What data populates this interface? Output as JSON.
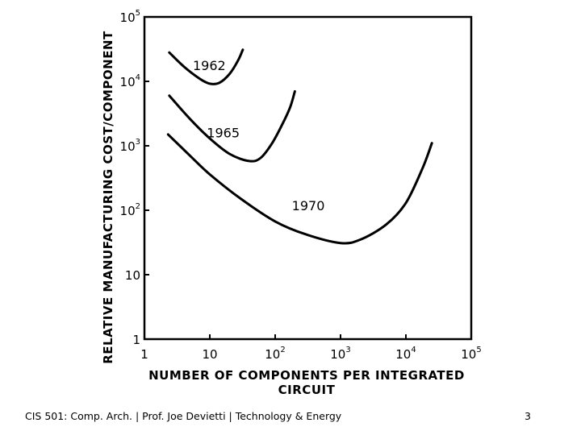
{
  "chart_data": {
    "type": "line",
    "title": "",
    "xlabel_lines": [
      "NUMBER OF COMPONENTS PER INTEGRATED",
      "CIRCUIT"
    ],
    "ylabel": "RELATIVE MANUFACTURING COST/COMPONENT",
    "xscale": "log",
    "yscale": "log",
    "xlim": [
      1,
      100000
    ],
    "ylim": [
      1,
      100000
    ],
    "grid": false,
    "x_ticks": [
      {
        "value": 1,
        "base": "1",
        "sup": ""
      },
      {
        "value": 10,
        "base": "10",
        "sup": ""
      },
      {
        "value": 100,
        "base": "10",
        "sup": "2"
      },
      {
        "value": 1000,
        "base": "10",
        "sup": "3"
      },
      {
        "value": 10000,
        "base": "10",
        "sup": "4"
      },
      {
        "value": 100000,
        "base": "10",
        "sup": "5"
      }
    ],
    "y_ticks": [
      {
        "value": 1,
        "base": "1",
        "sup": ""
      },
      {
        "value": 10,
        "base": "10",
        "sup": ""
      },
      {
        "value": 100,
        "base": "10",
        "sup": "2"
      },
      {
        "value": 1000,
        "base": "10",
        "sup": "3"
      },
      {
        "value": 10000,
        "base": "10",
        "sup": "4"
      },
      {
        "value": 100000,
        "base": "10",
        "sup": "5"
      }
    ],
    "series": [
      {
        "name": "1962",
        "label_at": [
          5.5,
          15000
        ],
        "points": [
          [
            2.4,
            28000
          ],
          [
            4,
            17000
          ],
          [
            7,
            11000
          ],
          [
            10,
            9200
          ],
          [
            14,
            9500
          ],
          [
            20,
            13000
          ],
          [
            27,
            21000
          ],
          [
            32,
            31000
          ]
        ]
      },
      {
        "name": "1965",
        "label_at": [
          9,
          1350
        ],
        "points": [
          [
            2.4,
            6000
          ],
          [
            5,
            2600
          ],
          [
            10,
            1300
          ],
          [
            20,
            750
          ],
          [
            40,
            580
          ],
          [
            60,
            650
          ],
          [
            90,
            1100
          ],
          [
            130,
            2200
          ],
          [
            170,
            4000
          ],
          [
            200,
            7000
          ]
        ]
      },
      {
        "name": "1970",
        "label_at": [
          180,
          100
        ],
        "points": [
          [
            2.3,
            1500
          ],
          [
            5,
            700
          ],
          [
            10,
            360
          ],
          [
            30,
            150
          ],
          [
            100,
            67
          ],
          [
            300,
            42
          ],
          [
            1000,
            31
          ],
          [
            2000,
            35
          ],
          [
            5000,
            60
          ],
          [
            10000,
            130
          ],
          [
            18000,
            450
          ],
          [
            25000,
            1100
          ]
        ]
      }
    ]
  },
  "footer": {
    "text": "CIS 501: Comp. Arch.  |  Prof. Joe Devietti  |  Technology & Energy",
    "page_number": "3"
  }
}
